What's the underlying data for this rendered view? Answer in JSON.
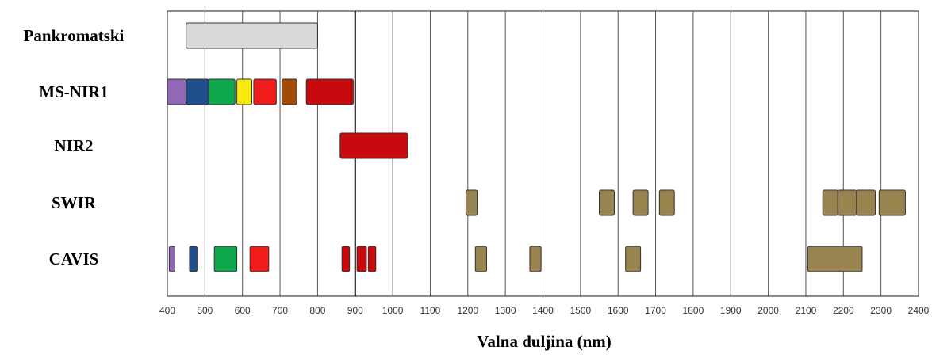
{
  "chart_data": {
    "type": "bar",
    "title": "",
    "xlabel": "Valna duljina (nm)",
    "ylabel": "",
    "xlim": [
      400,
      2400
    ],
    "x_ticks": [
      400,
      500,
      600,
      700,
      800,
      900,
      1000,
      1100,
      1200,
      1300,
      1400,
      1500,
      1600,
      1700,
      1800,
      1900,
      2000,
      2100,
      2200,
      2300,
      2400
    ],
    "grid": true,
    "categories": [
      "Pankromatski",
      "MS-NIR1",
      "NIR2",
      "SWIR",
      "CAVIS"
    ],
    "bands": [
      {
        "row": "Pankromatski",
        "start": 450,
        "end": 800,
        "color": "#dadada"
      },
      {
        "row": "MS-NIR1",
        "start": 400,
        "end": 450,
        "color": "#9068b4"
      },
      {
        "row": "MS-NIR1",
        "start": 450,
        "end": 510,
        "color": "#1f4e8c"
      },
      {
        "row": "MS-NIR1",
        "start": 510,
        "end": 580,
        "color": "#10a84c"
      },
      {
        "row": "MS-NIR1",
        "start": 585,
        "end": 625,
        "color": "#f5ea0c"
      },
      {
        "row": "MS-NIR1",
        "start": 630,
        "end": 690,
        "color": "#f21b1b"
      },
      {
        "row": "MS-NIR1",
        "start": 705,
        "end": 745,
        "color": "#a04a06"
      },
      {
        "row": "MS-NIR1",
        "start": 770,
        "end": 895,
        "color": "#c8090e"
      },
      {
        "row": "NIR2",
        "start": 860,
        "end": 1040,
        "color": "#c8090e"
      },
      {
        "row": "SWIR",
        "start": 1195,
        "end": 1225,
        "color": "#978450"
      },
      {
        "row": "SWIR",
        "start": 1550,
        "end": 1590,
        "color": "#978450"
      },
      {
        "row": "SWIR",
        "start": 1640,
        "end": 1680,
        "color": "#978450"
      },
      {
        "row": "SWIR",
        "start": 1710,
        "end": 1750,
        "color": "#978450"
      },
      {
        "row": "SWIR",
        "start": 2145,
        "end": 2185,
        "color": "#978450"
      },
      {
        "row": "SWIR",
        "start": 2185,
        "end": 2235,
        "color": "#978450"
      },
      {
        "row": "SWIR",
        "start": 2235,
        "end": 2285,
        "color": "#978450"
      },
      {
        "row": "SWIR",
        "start": 2295,
        "end": 2365,
        "color": "#978450"
      },
      {
        "row": "CAVIS",
        "start": 405,
        "end": 420,
        "color": "#9068b4"
      },
      {
        "row": "CAVIS",
        "start": 459,
        "end": 479,
        "color": "#1f4e8c"
      },
      {
        "row": "CAVIS",
        "start": 525,
        "end": 585,
        "color": "#10a84c"
      },
      {
        "row": "CAVIS",
        "start": 620,
        "end": 670,
        "color": "#f21b1b"
      },
      {
        "row": "CAVIS",
        "start": 865,
        "end": 885,
        "color": "#c8090e"
      },
      {
        "row": "CAVIS",
        "start": 905,
        "end": 930,
        "color": "#c8090e"
      },
      {
        "row": "CAVIS",
        "start": 935,
        "end": 955,
        "color": "#c8090e"
      },
      {
        "row": "CAVIS",
        "start": 1220,
        "end": 1250,
        "color": "#978450"
      },
      {
        "row": "CAVIS",
        "start": 1365,
        "end": 1395,
        "color": "#978450"
      },
      {
        "row": "CAVIS",
        "start": 1620,
        "end": 1660,
        "color": "#978450"
      },
      {
        "row": "CAVIS",
        "start": 2105,
        "end": 2250,
        "color": "#978450"
      }
    ]
  }
}
